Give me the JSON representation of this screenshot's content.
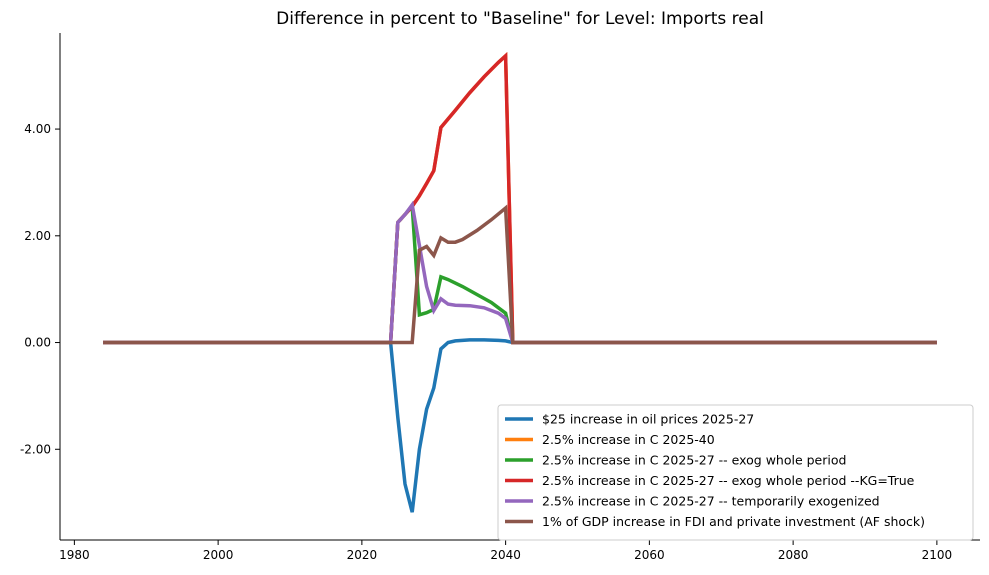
{
  "chart_data": {
    "type": "line",
    "title": "Difference in percent to \"Baseline\" for Level: Imports real",
    "xlabel": "",
    "ylabel": "",
    "xlim": [
      1978,
      2106
    ],
    "ylim": [
      -3.7,
      5.8
    ],
    "xticks": [
      1980,
      2000,
      2020,
      2040,
      2060,
      2080,
      2100
    ],
    "yticks": [
      -2,
      0,
      2,
      4
    ],
    "ytick_labels": [
      "-2.00",
      "0.00",
      "2.00",
      "4.00"
    ],
    "grid": false,
    "legend_position": "bottom-right",
    "series": [
      {
        "name": "$25 increase in oil prices 2025-27",
        "color": "#1f77b4",
        "points": [
          [
            1984,
            0
          ],
          [
            2024,
            0
          ],
          [
            2025,
            -1.4
          ],
          [
            2026,
            -2.65
          ],
          [
            2027,
            -3.18
          ],
          [
            2028,
            -2.0
          ],
          [
            2029,
            -1.25
          ],
          [
            2030,
            -0.85
          ],
          [
            2031,
            -0.12
          ],
          [
            2032,
            0.0
          ],
          [
            2033,
            0.03
          ],
          [
            2035,
            0.05
          ],
          [
            2037,
            0.05
          ],
          [
            2039,
            0.04
          ],
          [
            2040,
            0.03
          ],
          [
            2041,
            0
          ],
          [
            2100,
            0
          ]
        ]
      },
      {
        "name": "2.5% increase in C 2025-40",
        "color": "#ff7f0e",
        "points": [
          [
            1984,
            0
          ],
          [
            2024,
            0
          ],
          [
            2025,
            2.25
          ],
          [
            2026,
            2.4
          ],
          [
            2027,
            2.55
          ],
          [
            2028,
            2.75
          ],
          [
            2029,
            2.98
          ],
          [
            2030,
            3.22
          ],
          [
            2031,
            4.03
          ],
          [
            2033,
            4.35
          ],
          [
            2035,
            4.68
          ],
          [
            2037,
            4.98
          ],
          [
            2039,
            5.25
          ],
          [
            2040,
            5.37
          ],
          [
            2041,
            0
          ],
          [
            2100,
            0
          ]
        ]
      },
      {
        "name": "2.5% increase in C 2025-27 -- exog whole period",
        "color": "#2ca02c",
        "points": [
          [
            1984,
            0
          ],
          [
            2024,
            0
          ],
          [
            2025,
            2.25
          ],
          [
            2026,
            2.4
          ],
          [
            2027,
            2.55
          ],
          [
            2028,
            0.52
          ],
          [
            2029,
            0.56
          ],
          [
            2030,
            0.62
          ],
          [
            2031,
            1.23
          ],
          [
            2032,
            1.18
          ],
          [
            2034,
            1.05
          ],
          [
            2036,
            0.9
          ],
          [
            2038,
            0.75
          ],
          [
            2040,
            0.55
          ],
          [
            2041,
            0
          ],
          [
            2100,
            0
          ]
        ]
      },
      {
        "name": "2.5% increase in C 2025-27 -- exog whole period --KG=True",
        "color": "#d62728",
        "points": [
          [
            1984,
            0
          ],
          [
            2024,
            0
          ],
          [
            2025,
            2.25
          ],
          [
            2026,
            2.4
          ],
          [
            2027,
            2.55
          ],
          [
            2028,
            2.75
          ],
          [
            2029,
            2.98
          ],
          [
            2030,
            3.22
          ],
          [
            2031,
            4.03
          ],
          [
            2033,
            4.35
          ],
          [
            2035,
            4.68
          ],
          [
            2037,
            4.98
          ],
          [
            2039,
            5.25
          ],
          [
            2040,
            5.37
          ],
          [
            2041,
            0
          ],
          [
            2100,
            0
          ]
        ]
      },
      {
        "name": "2.5% increase in C 2025-27 -- temporarily exogenized",
        "color": "#9467bd",
        "points": [
          [
            1984,
            0
          ],
          [
            2024,
            0
          ],
          [
            2025,
            2.25
          ],
          [
            2026,
            2.4
          ],
          [
            2027,
            2.58
          ],
          [
            2028,
            1.82
          ],
          [
            2029,
            1.05
          ],
          [
            2030,
            0.6
          ],
          [
            2031,
            0.82
          ],
          [
            2032,
            0.72
          ],
          [
            2033,
            0.7
          ],
          [
            2035,
            0.69
          ],
          [
            2037,
            0.65
          ],
          [
            2039,
            0.55
          ],
          [
            2040,
            0.45
          ],
          [
            2041,
            0
          ],
          [
            2100,
            0
          ]
        ]
      },
      {
        "name": "1% of GDP increase in FDI and private investment (AF shock)",
        "color": "#8c564b",
        "points": [
          [
            1984,
            0
          ],
          [
            2027,
            0
          ],
          [
            2028,
            1.73
          ],
          [
            2029,
            1.8
          ],
          [
            2030,
            1.63
          ],
          [
            2031,
            1.96
          ],
          [
            2032,
            1.88
          ],
          [
            2033,
            1.88
          ],
          [
            2034,
            1.93
          ],
          [
            2036,
            2.1
          ],
          [
            2038,
            2.3
          ],
          [
            2040,
            2.52
          ],
          [
            2041,
            0
          ],
          [
            2100,
            0
          ]
        ]
      }
    ]
  }
}
